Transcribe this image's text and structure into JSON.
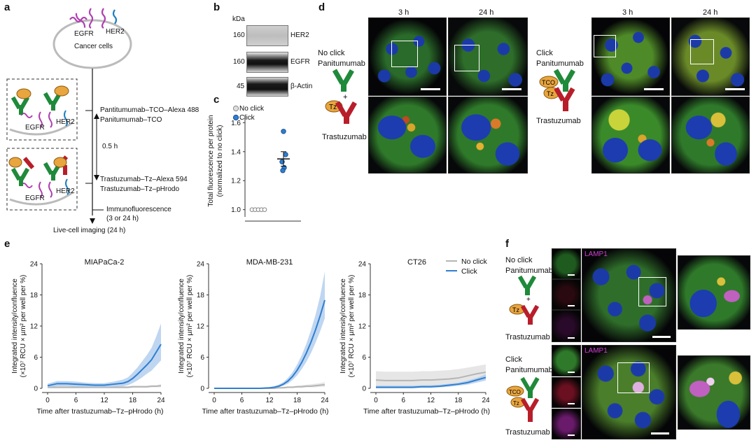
{
  "panels": {
    "a": "a",
    "b": "b",
    "c": "c",
    "d": "d",
    "e": "e",
    "f": "f"
  },
  "a": {
    "egfr": "EGFR",
    "her2": "HER2",
    "cancer_cells": "Cancer cells",
    "step1a": "Pantitumumab–TCO–Alexa 488",
    "step1b": "Panitumumab–TCO",
    "time1": "0.5 h",
    "step2a": "Trastuzumab–Tz–Alexa 594",
    "step2b": "Trastuzumab–Tz–pHrodo",
    "immuno": "Immunofluorescence",
    "immuno_time": "(3 or 24 h)",
    "live": "Live-cell imaging (24 h)"
  },
  "b": {
    "unit": "kDa",
    "rows": [
      {
        "kda": "160",
        "label": "HER2"
      },
      {
        "kda": "160",
        "label": "EGFR"
      },
      {
        "kda": "45",
        "label": "β-Actin"
      }
    ]
  },
  "c": {
    "legend_noclick": "No click",
    "legend_click": "Click",
    "ylabel_1": "Total fluorescence per protein",
    "ylabel_2": "(normalized to no click)",
    "ticks": [
      "1.0",
      "1.2",
      "1.4",
      "1.6"
    ]
  },
  "d": {
    "t3": "3 h",
    "t24": "24 h",
    "noclick": "No click",
    "click": "Click",
    "panitumumab": "Panitumumab",
    "trastuzumab": "Trastuzumab",
    "plus": "+",
    "tz": "Tz",
    "tco": "TCO"
  },
  "e": {
    "xlabel": "Time after trastuzumab–Tz–pHrodo (h)",
    "ylabel_1": "Integrated intensity/confluence",
    "ylabel_2": "(×10⁷ RCU × µm² per well per %)",
    "legend_noclick": "No click",
    "legend_click": "Click"
  },
  "f": {
    "lamp1": "LAMP1",
    "noclick": "No click",
    "click": "Click",
    "panitumumab": "Panitumumab",
    "trastuzumab": "Trastuzumab",
    "plus": "+",
    "tz": "Tz",
    "tco": "TCO"
  },
  "colors": {
    "click": "#2f7fd0",
    "noclick": "#b5b5b5",
    "click_band": "#a9c8ec",
    "noclick_band": "#dedede"
  },
  "chart_data": [
    {
      "type": "line",
      "title": "MIAPaCa-2",
      "xlabel": "Time after trastuzumab–Tz–pHrodo (h)",
      "ylabel": "Integrated intensity/confluence (×10⁷ RCU × µm² per well per %)",
      "xlim": [
        0,
        24
      ],
      "ylim": [
        0,
        24
      ],
      "xticks": [
        0,
        6,
        12,
        18,
        24
      ],
      "yticks": [
        0,
        6,
        12,
        18,
        24
      ],
      "x": [
        0,
        2,
        4,
        6,
        8,
        10,
        12,
        14,
        16,
        17,
        18,
        19,
        20,
        21,
        22,
        23,
        24
      ],
      "series": [
        {
          "name": "Click",
          "values": [
            0.5,
            0.9,
            0.9,
            0.8,
            0.7,
            0.6,
            0.6,
            0.8,
            1.0,
            1.3,
            1.9,
            2.7,
            3.6,
            4.5,
            5.5,
            7.0,
            8.5
          ],
          "lower": [
            0.2,
            0.4,
            0.4,
            0.3,
            0.3,
            0.2,
            0.2,
            0.3,
            0.4,
            0.6,
            1.0,
            1.5,
            2.1,
            2.8,
            3.4,
            4.4,
            5.4
          ],
          "upper": [
            0.9,
            1.4,
            1.4,
            1.3,
            1.1,
            1.0,
            1.0,
            1.3,
            1.7,
            2.1,
            3.0,
            4.0,
            5.2,
            6.4,
            7.8,
            10.0,
            12.5
          ]
        },
        {
          "name": "No click",
          "values": [
            0.2,
            0.2,
            0.2,
            0.2,
            0.2,
            0.2,
            0.2,
            0.2,
            0.2,
            0.2,
            0.3,
            0.3,
            0.3,
            0.3,
            0.4,
            0.4,
            0.5
          ],
          "lower": [
            0.0,
            0.0,
            0.0,
            0.0,
            0.0,
            0.0,
            0.0,
            0.0,
            0.0,
            0.0,
            0.1,
            0.1,
            0.1,
            0.1,
            0.2,
            0.2,
            0.2
          ],
          "upper": [
            0.4,
            0.4,
            0.4,
            0.4,
            0.4,
            0.4,
            0.4,
            0.4,
            0.4,
            0.4,
            0.5,
            0.5,
            0.5,
            0.5,
            0.6,
            0.6,
            0.8
          ]
        }
      ]
    },
    {
      "type": "line",
      "title": "MDA-MB-231",
      "xlabel": "Time after trastuzumab–Tz–pHrodo (h)",
      "ylabel": "Integrated intensity/confluence (×10⁷ RCU × µm² per well per %)",
      "xlim": [
        0,
        24
      ],
      "ylim": [
        0,
        24
      ],
      "xticks": [
        0,
        6,
        12,
        18,
        24
      ],
      "yticks": [
        0,
        6,
        12,
        18,
        24
      ],
      "x": [
        0,
        2,
        4,
        6,
        8,
        10,
        12,
        13,
        14,
        15,
        16,
        17,
        18,
        19,
        20,
        21,
        22,
        23,
        24
      ],
      "series": [
        {
          "name": "Click",
          "values": [
            0,
            0,
            0,
            0,
            0,
            0,
            0.1,
            0.2,
            0.4,
            0.8,
            1.4,
            2.3,
            3.5,
            5.0,
            6.8,
            8.9,
            11.3,
            14.0,
            17.0
          ],
          "lower": [
            0,
            0,
            0,
            0,
            0,
            0,
            0.0,
            0.1,
            0.2,
            0.5,
            0.9,
            1.6,
            2.5,
            3.7,
            5.1,
            6.8,
            8.8,
            11.0,
            13.5
          ],
          "upper": [
            0,
            0,
            0,
            0,
            0,
            0.1,
            0.2,
            0.4,
            0.7,
            1.2,
            2.0,
            3.1,
            4.6,
            6.4,
            8.6,
            11.2,
            14.2,
            17.8,
            22.5
          ]
        },
        {
          "name": "No click",
          "values": [
            0,
            0,
            0,
            0,
            0,
            0,
            0,
            0,
            0.1,
            0.1,
            0.2,
            0.2,
            0.3,
            0.3,
            0.4,
            0.4,
            0.5,
            0.6,
            0.7
          ],
          "lower": [
            0,
            0,
            0,
            0,
            0,
            0,
            0,
            0,
            0,
            0,
            0.1,
            0.1,
            0.1,
            0.1,
            0.2,
            0.2,
            0.2,
            0.3,
            0.3
          ],
          "upper": [
            0,
            0,
            0,
            0,
            0,
            0,
            0.1,
            0.1,
            0.2,
            0.3,
            0.4,
            0.4,
            0.5,
            0.6,
            0.7,
            0.8,
            0.9,
            1.0,
            1.2
          ]
        }
      ]
    },
    {
      "type": "line",
      "title": "CT26",
      "xlabel": "Time after trastuzumab–Tz–pHrodo (h)",
      "ylabel": "Integrated intensity/confluence (×10⁷ RCU × µm² per well per %)",
      "xlim": [
        0,
        24
      ],
      "ylim": [
        0,
        24
      ],
      "xticks": [
        0,
        6,
        12,
        18,
        24
      ],
      "yticks": [
        0,
        6,
        12,
        18,
        24
      ],
      "legend": "top-right",
      "x": [
        0,
        2,
        4,
        6,
        8,
        10,
        12,
        14,
        16,
        18,
        20,
        22,
        24
      ],
      "series": [
        {
          "name": "No click",
          "values": [
            1.6,
            1.5,
            1.5,
            1.5,
            1.5,
            1.6,
            1.6,
            1.7,
            1.8,
            2.0,
            2.4,
            2.8,
            3.1
          ],
          "lower": [
            0.2,
            0.2,
            0.2,
            0.2,
            0.2,
            0.3,
            0.3,
            0.4,
            0.5,
            0.7,
            1.0,
            1.4,
            1.7
          ],
          "upper": [
            3.3,
            3.2,
            3.2,
            3.2,
            3.2,
            3.3,
            3.3,
            3.4,
            3.5,
            3.7,
            4.0,
            4.3,
            4.6
          ]
        },
        {
          "name": "Click",
          "values": [
            0.2,
            0.2,
            0.2,
            0.2,
            0.2,
            0.3,
            0.3,
            0.4,
            0.6,
            0.8,
            1.1,
            1.6,
            2.1
          ],
          "lower": [
            0.0,
            0.0,
            0.0,
            0.0,
            0.0,
            0.1,
            0.1,
            0.2,
            0.3,
            0.5,
            0.7,
            1.1,
            1.5
          ],
          "upper": [
            0.5,
            0.5,
            0.5,
            0.5,
            0.5,
            0.6,
            0.6,
            0.7,
            0.9,
            1.1,
            1.5,
            2.0,
            2.7
          ]
        }
      ]
    },
    {
      "type": "scatter",
      "title": "",
      "ylabel": "Total fluorescence per protein (normalized to no click)",
      "ylim": [
        0.95,
        1.65
      ],
      "yticks": [
        1.0,
        1.2,
        1.4,
        1.6
      ],
      "series": [
        {
          "name": "No click",
          "values": [
            1.0,
            1.0,
            1.0,
            1.0,
            1.0
          ],
          "mean": 1.0
        },
        {
          "name": "Click",
          "values": [
            1.54,
            1.38,
            1.33,
            1.29,
            1.27
          ],
          "mean": 1.35,
          "sem": 0.05
        }
      ]
    }
  ]
}
